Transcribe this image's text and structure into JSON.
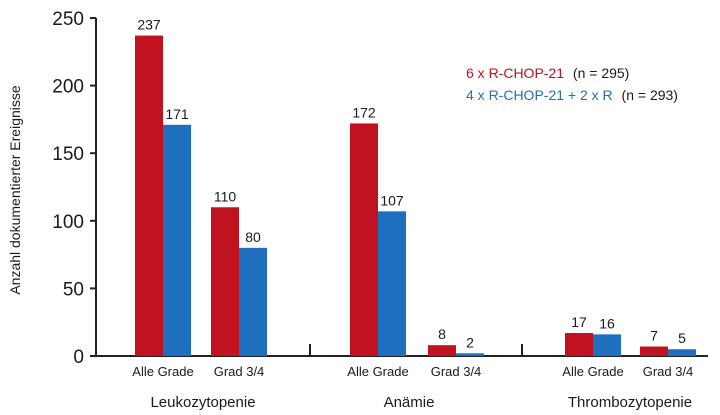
{
  "chart_data": {
    "type": "bar",
    "ylabel": "Anzahl dokumentierter Ereignisse",
    "ylim": [
      0,
      250
    ],
    "yticks": [
      0,
      50,
      100,
      150,
      200,
      250
    ],
    "grid": false,
    "legend_position": "top-right",
    "groups": [
      {
        "name": "Leukozytopenie",
        "subcategories": [
          "Alle Grade",
          "Grad 3/4"
        ]
      },
      {
        "name": "Anämie",
        "subcategories": [
          "Alle Grade",
          "Grad 3/4"
        ]
      },
      {
        "name": "Thrombozytopenie",
        "subcategories": [
          "Alle Grade",
          "Grad 3/4"
        ]
      }
    ],
    "series": [
      {
        "name": "6 x R-CHOP-21",
        "legend_suffix": "(n = 295)",
        "color": "#c1121f",
        "values": [
          237,
          110,
          172,
          8,
          17,
          7
        ]
      },
      {
        "name": "4 x R-CHOP-21 + 2 x R",
        "legend_suffix": "(n = 293)",
        "color": "#1f6fbf",
        "values": [
          171,
          80,
          107,
          2,
          16,
          5
        ]
      }
    ]
  }
}
